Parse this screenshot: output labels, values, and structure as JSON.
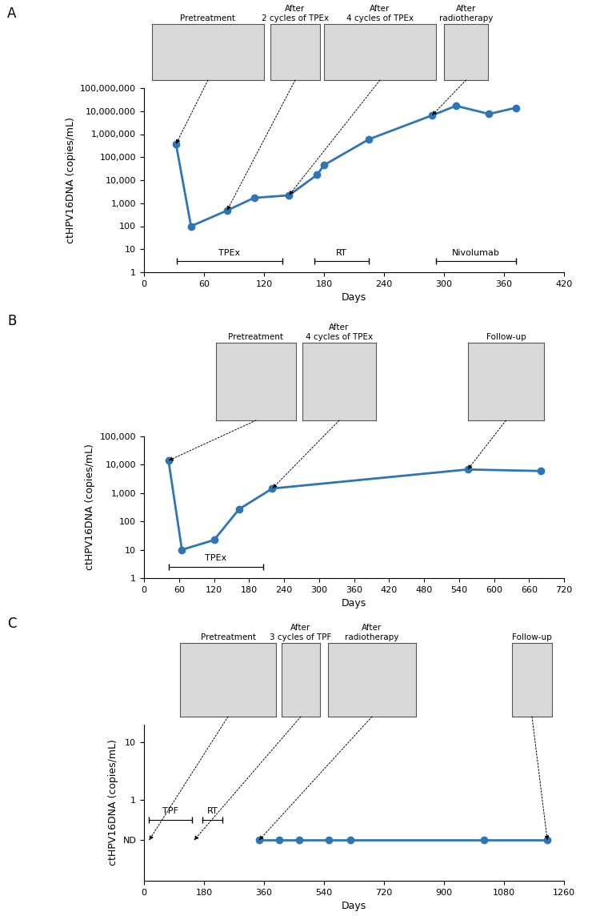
{
  "chart_data": [
    {
      "type": "line",
      "panel_label": "A",
      "x_label": "Days",
      "y_label": "ctHPV16DNA (copies/mL)",
      "x": [
        32,
        47,
        83,
        110,
        145,
        173,
        180,
        225,
        288,
        312,
        345,
        372
      ],
      "values": [
        370000,
        100,
        480,
        1700,
        2200,
        17000,
        45000,
        600000,
        6500000,
        17000000,
        7500000,
        14000000
      ],
      "color": "#2e75b6",
      "marker": "o",
      "log": "y",
      "xlim": [
        0,
        420
      ],
      "xticks": [
        0,
        60,
        120,
        180,
        240,
        300,
        360,
        420
      ],
      "ylim": [
        1,
        100000000
      ],
      "yticks": [
        1,
        10,
        100,
        {
          "value": 1000,
          "label": "1,000"
        },
        {
          "value": 10000,
          "label": "10,000"
        },
        {
          "value": 100000,
          "label": "100,000"
        },
        {
          "value": 1000000,
          "label": "1,000,000"
        },
        {
          "value": 10000000,
          "label": "10,000,000"
        },
        {
          "value": 100000000,
          "label": "100,000,000"
        }
      ],
      "treatments": [
        {
          "label": "TPEx",
          "start": 33,
          "end": 138,
          "y": 3
        },
        {
          "label": "RT",
          "start": 170,
          "end": 225,
          "y": 3
        },
        {
          "label": "Nivolumab",
          "start": 292,
          "end": 372,
          "y": 3
        }
      ],
      "images": [
        {
          "label": "Pretreatment",
          "x": 32,
          "y": 370000
        },
        {
          "label": "After\n2 cycles of TPEx",
          "x": 83,
          "y": 480
        },
        {
          "label": "After\n4 cycles of TPEx",
          "x": 145,
          "y": 2200
        },
        {
          "label": "After\nradiotherapy",
          "x": 288,
          "y": 6500000
        }
      ]
    },
    {
      "type": "line",
      "panel_label": "B",
      "x_label": "Days",
      "y_label": "ctHPV16DNA (copies/mL)",
      "x": [
        42,
        65,
        120,
        163,
        220,
        555,
        680
      ],
      "values": [
        14000,
        10,
        22,
        270,
        1450,
        6800,
        6000
      ],
      "color": "#2e75b6",
      "marker": "o",
      "log": "y",
      "xlim": [
        0,
        720
      ],
      "xticks": [
        0,
        60,
        120,
        180,
        240,
        300,
        360,
        420,
        480,
        540,
        600,
        660,
        720
      ],
      "ylim": [
        1,
        100000
      ],
      "yticks": [
        1,
        10,
        100,
        {
          "value": 1000,
          "label": "1,000"
        },
        {
          "value": 10000,
          "label": "10,000"
        },
        {
          "value": 100000,
          "label": "100,000"
        }
      ],
      "treatments": [
        {
          "label": "TPEx",
          "start": 42,
          "end": 205,
          "y": 2.5
        }
      ],
      "images": [
        {
          "label": "Pretreatment",
          "x": 42,
          "y": 14000
        },
        {
          "label": "After\n4 cycles of TPEx",
          "x": 220,
          "y": 1450
        },
        {
          "label": "Follow-up",
          "x": 555,
          "y": 6800
        }
      ]
    },
    {
      "type": "line",
      "panel_label": "C",
      "x_label": "Days",
      "y_label": "ctHPV16DNA (copies/mL)",
      "x": [
        345,
        405,
        465,
        555,
        620,
        1020,
        1210
      ],
      "values": [
        0.2,
        0.2,
        0.2,
        0.2,
        0.2,
        0.2,
        0.2
      ],
      "color": "#2e75b6",
      "marker": "o",
      "log": "y",
      "xlim": [
        0,
        1260
      ],
      "xticks": [
        0,
        180,
        360,
        540,
        720,
        900,
        1080,
        1260
      ],
      "ylim": [
        0.04,
        20
      ],
      "yticks": [
        {
          "value": 0.2,
          "label": "ND"
        },
        1,
        10
      ],
      "treatments": [
        {
          "label": "TPF",
          "start": 15,
          "end": 145,
          "y": 0.45
        },
        {
          "label": "RT",
          "start": 175,
          "end": 235,
          "y": 0.45
        }
      ],
      "images": [
        {
          "label": "Pretreatment",
          "x": 15,
          "y": 0.2
        },
        {
          "label": "After\n3 cycles of TPF",
          "x": 150,
          "y": 0.2
        },
        {
          "label": "After\nradiotherapy",
          "x": 345,
          "y": 0.2
        },
        {
          "label": "Follow-up",
          "x": 1210,
          "y": 0.2
        }
      ]
    }
  ]
}
